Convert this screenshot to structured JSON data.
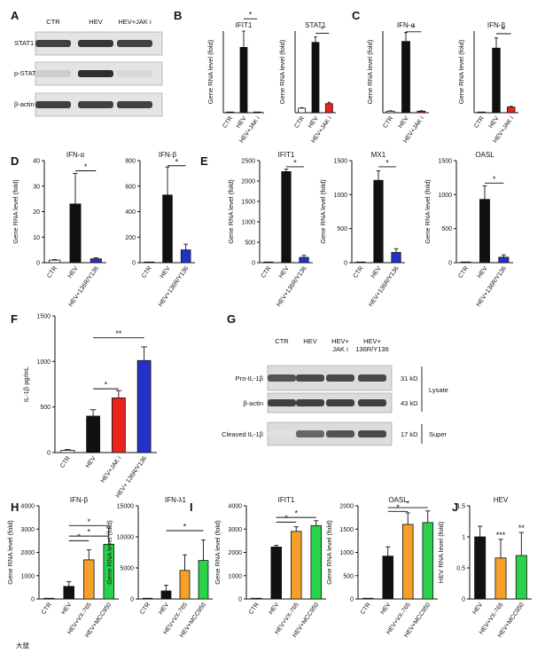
{
  "panels": [
    {
      "id": "A",
      "label": "A"
    },
    {
      "id": "B",
      "label": "B"
    },
    {
      "id": "C",
      "label": "C"
    },
    {
      "id": "D",
      "label": "D"
    },
    {
      "id": "E",
      "label": "E"
    },
    {
      "id": "F",
      "label": "F"
    },
    {
      "id": "G",
      "label": "G"
    },
    {
      "id": "H",
      "label": "H"
    },
    {
      "id": "I",
      "label": "I"
    },
    {
      "id": "J",
      "label": "J"
    }
  ],
  "colors": {
    "black": "#111111",
    "white": "#ffffff",
    "red": "#e8241f",
    "blue": "#2431c8",
    "orange": "#f5a02a",
    "green": "#2ad14a",
    "error": "#111111"
  },
  "blots": {
    "A": {
      "columns": [
        "CTR",
        "HEV",
        "HEV+JAK i"
      ],
      "rows": [
        {
          "label": "STAT1",
          "bands": [
            0.85,
            0.9,
            0.85
          ]
        },
        {
          "label": "p-STAT1",
          "bands": [
            0.15,
            0.95,
            0.1
          ]
        },
        {
          "label": "β-actin",
          "bands": [
            0.85,
            0.85,
            0.85
          ]
        }
      ]
    },
    "G": {
      "columns": [
        "CTR",
        "HEV",
        "HEV+\nJAK i",
        "HEV+\n136R/Y136"
      ],
      "rows": [
        {
          "label": "Pro-IL-1β",
          "kd": "31 kD",
          "bands": [
            0.75,
            0.8,
            0.8,
            0.8
          ]
        },
        {
          "label": "β-actin",
          "kd": "43 kD",
          "bands": [
            0.85,
            0.85,
            0.85,
            0.85
          ]
        },
        {
          "label": "Cleaved IL-1β",
          "kd": "17 kD",
          "bands": [
            0.0,
            0.65,
            0.75,
            0.8
          ]
        }
      ],
      "groups": [
        {
          "label": "Lysate",
          "rows": [
            0,
            1
          ]
        },
        {
          "label": "Super",
          "rows": [
            2
          ]
        }
      ]
    }
  },
  "chart_data": [
    {
      "panel": "B",
      "type": "bar",
      "title": "IFIT1",
      "ylabel": "Gene RNA level (fold)",
      "ylim": [
        0,
        1000
      ],
      "yticks": [],
      "categories": [
        "CTR",
        "HEV",
        "HEV+JAK i"
      ],
      "values": [
        1,
        800,
        2
      ],
      "errors": [
        0,
        340,
        0
      ],
      "colors": [
        "white",
        "black",
        "red"
      ],
      "annotations": [
        {
          "from": 1,
          "to": 2,
          "text": "*",
          "at": 1150
        }
      ]
    },
    {
      "panel": "B",
      "type": "bar",
      "title": "STAT1",
      "ylabel": "Gene RNA level (fold)",
      "ylim": [
        0,
        18
      ],
      "yticks": [],
      "categories": [
        "CTR",
        "HEV",
        "HEV+JAK i"
      ],
      "values": [
        1,
        15.5,
        2
      ],
      "errors": [
        0.1,
        1.2,
        0.3
      ],
      "colors": [
        "white",
        "black",
        "red"
      ],
      "annotations": [
        {
          "from": 1,
          "to": 2,
          "text": "*",
          "at": 17.5
        }
      ]
    },
    {
      "panel": "C",
      "type": "bar",
      "title": "IFN-α",
      "ylabel": "Gene RNA level (fold)",
      "ylim": [
        0,
        55
      ],
      "yticks": [],
      "categories": [
        "CTR",
        "HEV",
        "HEV+JAK i"
      ],
      "values": [
        1,
        48,
        1
      ],
      "errors": [
        0.3,
        6,
        0.3
      ],
      "colors": [
        "white",
        "black",
        "red"
      ],
      "annotations": [
        {
          "from": 1,
          "to": 2,
          "text": "*",
          "at": 54.5
        }
      ]
    },
    {
      "panel": "C",
      "type": "bar",
      "title": "IFN-β",
      "ylabel": "Gene RNA level (fold)",
      "ylim": [
        0,
        2150
      ],
      "yticks": [],
      "categories": [
        "CTR",
        "HEV",
        "HEV+JAK i"
      ],
      "values": [
        1,
        1700,
        150
      ],
      "errors": [
        0,
        270,
        15
      ],
      "colors": [
        "white",
        "black",
        "red"
      ],
      "annotations": [
        {
          "from": 1,
          "to": 2,
          "text": "*",
          "at": 2080
        }
      ]
    },
    {
      "panel": "D",
      "type": "bar",
      "title": "IFN-α",
      "ylabel": "Gene RNA level (fold)",
      "ylim": [
        0,
        40
      ],
      "yticks": [
        0,
        10,
        20,
        30,
        40
      ],
      "categories": [
        "CTR",
        "HEV",
        "HEV+136R/Y136"
      ],
      "values": [
        1,
        23,
        1.5
      ],
      "errors": [
        0.2,
        12,
        0.4
      ],
      "colors": [
        "white",
        "black",
        "blue"
      ],
      "annotations": [
        {
          "from": 1,
          "to": 2,
          "text": "*",
          "at": 36
        }
      ]
    },
    {
      "panel": "D",
      "type": "bar",
      "title": "IFN-β",
      "ylabel": "",
      "ylim": [
        0,
        800
      ],
      "yticks": [
        0,
        200,
        400,
        600,
        800
      ],
      "categories": [
        "CTR",
        "HEV",
        "HEV+136R/Y136"
      ],
      "values": [
        1,
        530,
        100
      ],
      "errors": [
        0,
        220,
        45
      ],
      "colors": [
        "white",
        "black",
        "blue"
      ],
      "annotations": [
        {
          "from": 1,
          "to": 2,
          "text": "*",
          "at": 760
        }
      ]
    },
    {
      "panel": "E",
      "type": "bar",
      "title": "IFIT1",
      "ylabel": "Gene RNA level (fold)",
      "ylim": [
        0,
        2500
      ],
      "yticks": [
        0,
        500,
        1000,
        1500,
        2000,
        2500
      ],
      "categories": [
        "CTR",
        "HEV",
        "HEV+136R/Y136"
      ],
      "values": [
        1,
        2230,
        130
      ],
      "errors": [
        0,
        60,
        50
      ],
      "colors": [
        "white",
        "black",
        "blue"
      ],
      "annotations": [
        {
          "from": 1,
          "to": 2,
          "text": "*",
          "at": 2350
        }
      ]
    },
    {
      "panel": "E",
      "type": "bar",
      "title": "MX1",
      "ylabel": "Gene RNA level (fold)",
      "ylim": [
        0,
        1500
      ],
      "yticks": [
        0,
        500,
        1000,
        1500
      ],
      "categories": [
        "CTR",
        "HEV",
        "HEV+136R/Y136"
      ],
      "values": [
        1,
        1210,
        150
      ],
      "errors": [
        0,
        140,
        55
      ],
      "colors": [
        "white",
        "black",
        "blue"
      ],
      "annotations": [
        {
          "from": 1,
          "to": 2,
          "text": "*",
          "at": 1410
        }
      ]
    },
    {
      "panel": "E",
      "type": "bar",
      "title": "OASL",
      "ylabel": "Gene RNA level (fold)",
      "ylim": [
        0,
        1500
      ],
      "yticks": [
        0,
        500,
        1000,
        1500
      ],
      "categories": [
        "CTR",
        "HEV",
        "HEV+136R/Y136"
      ],
      "values": [
        1,
        930,
        80
      ],
      "errors": [
        0,
        200,
        35
      ],
      "colors": [
        "white",
        "black",
        "blue"
      ],
      "annotations": [
        {
          "from": 1,
          "to": 2,
          "text": "*",
          "at": 1170
        }
      ]
    },
    {
      "panel": "F",
      "type": "bar",
      "title": "",
      "ylabel": "IL-1β pg/mL",
      "ylim": [
        0,
        1500
      ],
      "yticks": [
        0,
        500,
        1000,
        1500
      ],
      "categories": [
        "CTR",
        "HEV",
        "HEV+JAK i",
        "HEV+ 136R/Y136"
      ],
      "values": [
        25,
        400,
        600,
        1010
      ],
      "errors": [
        8,
        70,
        80,
        150
      ],
      "colors": [
        "white",
        "black",
        "red",
        "blue"
      ],
      "annotations": [
        {
          "from": 1,
          "to": 2,
          "text": "*",
          "at": 700
        },
        {
          "from": 1,
          "to": 3,
          "text": "**",
          "at": 1260
        }
      ]
    },
    {
      "panel": "H",
      "type": "bar",
      "title": "IFN-β",
      "ylabel": "Gene RNA level (fold)",
      "ylim": [
        0,
        4000
      ],
      "yticks": [
        0,
        1000,
        2000,
        3000,
        4000
      ],
      "categories": [
        "CTR",
        "HEV",
        "HEV+VX-765",
        "HEV+MCC950"
      ],
      "values": [
        1,
        540,
        1680,
        2350
      ],
      "errors": [
        0,
        200,
        430,
        700
      ],
      "colors": [
        "white",
        "black",
        "orange",
        "green"
      ],
      "annotations": [
        {
          "from": 1,
          "to": 2,
          "text": "*",
          "at": 2500
        },
        {
          "from": 1,
          "to": 3,
          "text": "*",
          "at": 3150
        },
        {
          "from": 1,
          "to": 3,
          "text": "*",
          "at": 2700
        }
      ]
    },
    {
      "panel": "H",
      "type": "bar",
      "title": "IFN-λ1",
      "ylabel": "Gene RNA level (fold)",
      "ylim": [
        0,
        15000
      ],
      "yticks": [
        0,
        5000,
        10000,
        15000
      ],
      "categories": [
        "CTR",
        "HEV",
        "HEV+VX-765",
        "HEV+MCC950"
      ],
      "values": [
        1,
        1300,
        4600,
        6200
      ],
      "errors": [
        0,
        900,
        2500,
        3300
      ],
      "colors": [
        "white",
        "black",
        "orange",
        "green"
      ],
      "annotations": [
        {
          "from": 1,
          "to": 3,
          "text": "*",
          "at": 11000
        }
      ]
    },
    {
      "panel": "I",
      "type": "bar",
      "title": "IFIT1",
      "ylabel": "Gene RNA level (fold)",
      "ylim": [
        0,
        4000
      ],
      "yticks": [
        0,
        1000,
        2000,
        3000,
        4000
      ],
      "categories": [
        "CTR",
        "HEV",
        "HEV+VX-765",
        "HEV+MCC950"
      ],
      "values": [
        1,
        2230,
        2900,
        3150
      ],
      "errors": [
        0,
        70,
        200,
        210
      ],
      "colors": [
        "white",
        "black",
        "orange",
        "green"
      ],
      "annotations": [
        {
          "from": 1,
          "to": 2,
          "text": "*",
          "at": 3300
        },
        {
          "from": 1,
          "to": 3,
          "text": "*",
          "at": 3500
        }
      ]
    },
    {
      "panel": "I",
      "type": "bar",
      "title": "OASL",
      "ylabel": "Gene RNA level (fold)",
      "ylim": [
        0,
        2000
      ],
      "yticks": [
        0,
        500,
        1000,
        1500,
        2000
      ],
      "categories": [
        "CTR",
        "HEV",
        "HEV+VX-765",
        "HEV+MCC950"
      ],
      "values": [
        1,
        920,
        1600,
        1640
      ],
      "errors": [
        0,
        200,
        250,
        250
      ],
      "colors": [
        "white",
        "black",
        "orange",
        "green"
      ],
      "annotations": [
        {
          "from": 1,
          "to": 2,
          "text": "*",
          "at": 1880
        },
        {
          "from": 1,
          "to": 3,
          "text": "*",
          "at": 1960
        }
      ]
    },
    {
      "panel": "J",
      "type": "bar",
      "title": "HEV",
      "ylabel": "HEV RNA level (fold)",
      "ylim": [
        0,
        1.5
      ],
      "yticks": [
        0,
        0.5,
        1.0,
        1.5
      ],
      "categories": [
        "HEV",
        "HEV+VX-765",
        "HEV+MCC950"
      ],
      "values": [
        1.0,
        0.66,
        0.7
      ],
      "errors": [
        0.17,
        0.3,
        0.37
      ],
      "colors": [
        "black",
        "orange",
        "green"
      ],
      "annotations": [],
      "marks": [
        {
          "bar": 1,
          "text": "***"
        },
        {
          "bar": 2,
          "text": "**"
        }
      ]
    }
  ],
  "watermark": "大鼠"
}
